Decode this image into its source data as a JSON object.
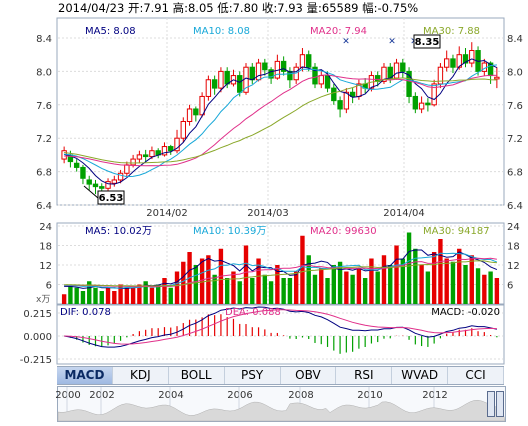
{
  "header": {
    "date": "2014/04/23",
    "open": "开:7.91",
    "high": "高:8.05",
    "low": "低:7.80",
    "close": "收:7.93",
    "volume": "量:65589",
    "change": "幅:-0.75%"
  },
  "price_panel": {
    "ma_labels": [
      {
        "text": "MA5: 8.08",
        "color": "#000080"
      },
      {
        "text": "MA10: 8.08",
        "color": "#18a8d8"
      },
      {
        "text": "MA20: 7.94",
        "color": "#e0308a"
      },
      {
        "text": "MA30: 7.88",
        "color": "#8aa82a"
      }
    ],
    "y_ticks": [
      "8.4",
      "8.0",
      "7.6",
      "7.2",
      "6.8",
      "6.4"
    ],
    "x_ticks": [
      "2014/02",
      "2014/03",
      "2014/04"
    ],
    "high_marker": "8.35",
    "low_marker": "6.53"
  },
  "volume_panel": {
    "ma_labels": [
      {
        "text": "MA5: 10.02万",
        "color": "#000080"
      },
      {
        "text": "MA10: 10.39万",
        "color": "#18a8d8"
      },
      {
        "text": "MA20: 99630",
        "color": "#e0308a"
      },
      {
        "text": "MA30: 94187",
        "color": "#8aa82a"
      }
    ],
    "y_ticks": [
      "24",
      "18",
      "12",
      "6"
    ],
    "unit": "x万"
  },
  "macd_panel": {
    "labels": [
      {
        "text": "DIF: 0.078",
        "color": "#000080"
      },
      {
        "text": "DEA: 0.088",
        "color": "#e0308a"
      },
      {
        "text": "MACD: -0.020",
        "color": "#000"
      }
    ],
    "y_ticks": [
      "0.215",
      "0.000",
      "-0.215"
    ]
  },
  "tabs": [
    "MACD",
    "KDJ",
    "BOLL",
    "PSY",
    "OBV",
    "RSI",
    "WVAD",
    "CCI"
  ],
  "active_tab": "MACD",
  "timeline": {
    "years": [
      "2000",
      "2002",
      "2004",
      "2006",
      "2008",
      "2010",
      "2012"
    ]
  },
  "colors": {
    "up": "#e60000",
    "down": "#00a000",
    "grid": "#dcdcdc",
    "ma5": "#000080",
    "ma10": "#18a8d8",
    "ma20": "#e0308a",
    "ma30": "#8aa82a"
  },
  "chart_data": {
    "type": "candlestick",
    "price_range": [
      6.4,
      8.4
    ],
    "volume_range": [
      0,
      24
    ],
    "macd_range": [
      -0.215,
      0.215
    ],
    "x_labels": [
      "2014/02",
      "2014/03",
      "2014/04"
    ],
    "candles_approx": [
      [
        6.95,
        7.05,
        6.9,
        7.1
      ],
      [
        7.0,
        6.92,
        6.85,
        7.05
      ],
      [
        6.9,
        6.85,
        6.8,
        6.95
      ],
      [
        6.85,
        6.72,
        6.65,
        6.88
      ],
      [
        6.7,
        6.65,
        6.58,
        6.75
      ],
      [
        6.65,
        6.62,
        6.53,
        6.7
      ],
      [
        6.62,
        6.6,
        6.55,
        6.66
      ],
      [
        6.6,
        6.68,
        6.57,
        6.72
      ],
      [
        6.66,
        6.7,
        6.62,
        6.75
      ],
      [
        6.7,
        6.78,
        6.66,
        6.82
      ],
      [
        6.78,
        6.88,
        6.74,
        6.92
      ],
      [
        6.88,
        6.95,
        6.85,
        7.0
      ],
      [
        6.95,
        7.0,
        6.9,
        7.05
      ],
      [
        7.0,
        6.98,
        6.92,
        7.06
      ],
      [
        6.98,
        7.05,
        6.95,
        7.1
      ],
      [
        7.05,
        7.0,
        6.96,
        7.08
      ],
      [
        7.0,
        7.1,
        6.98,
        7.15
      ],
      [
        7.1,
        7.05,
        7.0,
        7.12
      ],
      [
        7.05,
        7.2,
        7.02,
        7.3
      ],
      [
        7.2,
        7.4,
        7.15,
        7.45
      ],
      [
        7.4,
        7.55,
        7.35,
        7.6
      ],
      [
        7.55,
        7.48,
        7.4,
        7.58
      ],
      [
        7.48,
        7.7,
        7.45,
        7.75
      ],
      [
        7.7,
        7.9,
        7.65,
        7.95
      ],
      [
        7.9,
        7.8,
        7.72,
        7.95
      ],
      [
        7.8,
        8.0,
        7.75,
        8.05
      ],
      [
        8.0,
        7.85,
        7.8,
        8.05
      ],
      [
        7.85,
        7.95,
        7.82,
        8.02
      ],
      [
        7.95,
        7.75,
        7.7,
        8.0
      ],
      [
        7.75,
        8.05,
        7.72,
        8.1
      ],
      [
        8.05,
        7.9,
        7.85,
        8.1
      ],
      [
        7.9,
        8.1,
        7.88,
        8.15
      ],
      [
        8.1,
        8.02,
        7.95,
        8.15
      ],
      [
        8.02,
        7.92,
        7.85,
        8.05
      ],
      [
        7.92,
        8.12,
        7.9,
        8.2
      ],
      [
        8.12,
        8.0,
        7.95,
        8.18
      ],
      [
        8.0,
        7.9,
        7.8,
        8.05
      ],
      [
        7.9,
        8.05,
        7.85,
        8.1
      ],
      [
        8.05,
        8.2,
        8.0,
        8.28
      ],
      [
        8.2,
        8.05,
        8.0,
        8.25
      ],
      [
        8.05,
        7.85,
        7.8,
        8.1
      ],
      [
        7.85,
        7.95,
        7.8,
        8.0
      ],
      [
        7.95,
        7.8,
        7.75,
        8.0
      ],
      [
        7.8,
        7.65,
        7.6,
        7.85
      ],
      [
        7.65,
        7.55,
        7.45,
        7.7
      ],
      [
        7.55,
        7.75,
        7.5,
        7.8
      ],
      [
        7.75,
        7.7,
        7.62,
        7.8
      ],
      [
        7.7,
        7.85,
        7.66,
        7.9
      ],
      [
        7.85,
        7.8,
        7.74,
        7.92
      ],
      [
        7.8,
        7.95,
        7.76,
        8.0
      ],
      [
        7.95,
        7.88,
        7.82,
        8.0
      ],
      [
        7.88,
        8.05,
        7.85,
        8.1
      ],
      [
        8.05,
        7.92,
        7.86,
        8.1
      ],
      [
        7.92,
        8.1,
        7.9,
        8.15
      ],
      [
        8.1,
        8.0,
        7.92,
        8.15
      ],
      [
        8.0,
        7.7,
        7.62,
        8.05
      ],
      [
        7.7,
        7.55,
        7.5,
        7.75
      ],
      [
        7.55,
        7.62,
        7.5,
        7.7
      ],
      [
        7.62,
        7.6,
        7.52,
        7.68
      ],
      [
        7.6,
        7.85,
        7.58,
        7.9
      ],
      [
        7.85,
        8.05,
        7.8,
        8.1
      ],
      [
        8.05,
        8.15,
        8.0,
        8.25
      ],
      [
        8.15,
        8.05,
        7.98,
        8.2
      ],
      [
        8.05,
        8.2,
        8.02,
        8.3
      ],
      [
        8.2,
        8.1,
        8.05,
        8.28
      ],
      [
        8.1,
        8.25,
        8.05,
        8.35
      ],
      [
        8.25,
        8.0,
        7.95,
        8.3
      ],
      [
        8.0,
        8.1,
        7.95,
        8.15
      ],
      [
        8.1,
        7.95,
        7.85,
        8.12
      ],
      [
        7.91,
        7.93,
        7.8,
        8.05
      ]
    ]
  }
}
